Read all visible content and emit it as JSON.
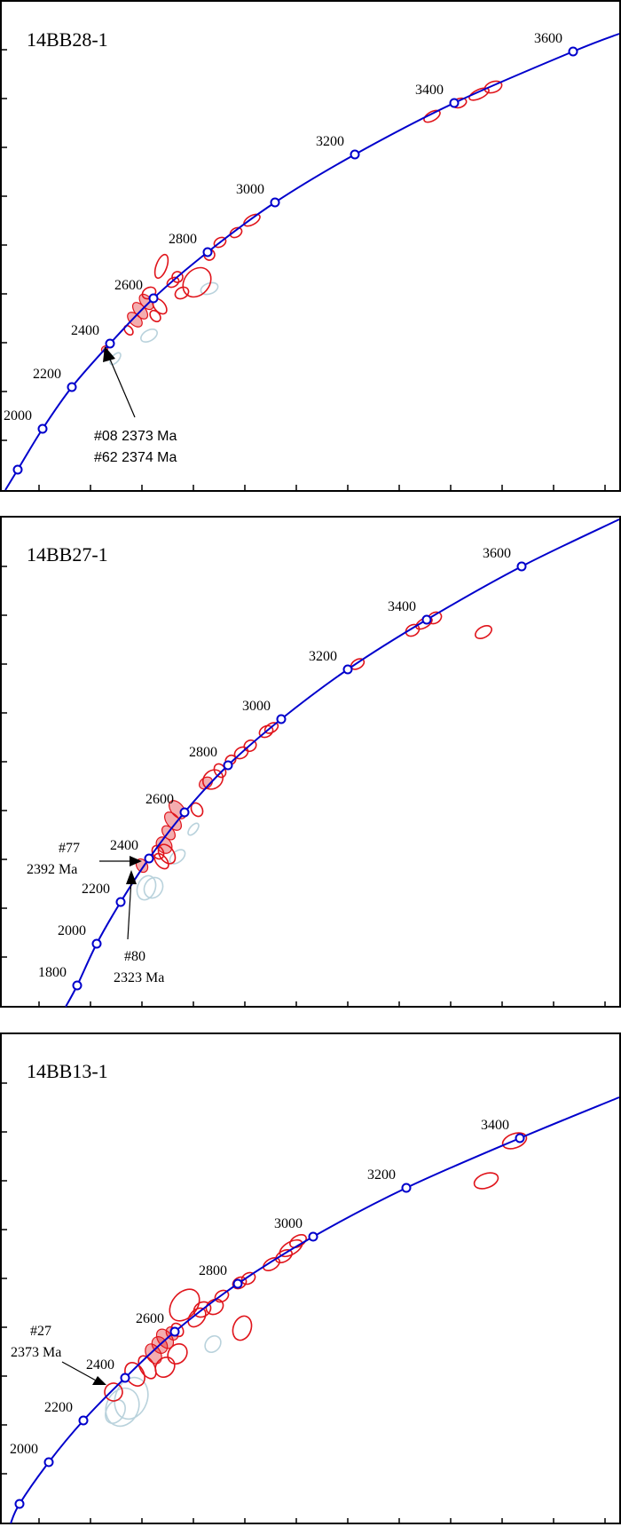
{
  "chart_data": [
    {
      "type": "scatter",
      "title": "14BB28-1",
      "concordia_age_markers": [
        2000,
        2200,
        2400,
        2600,
        2800,
        3000,
        3200,
        3400,
        3600
      ],
      "annotations": [
        {
          "lines": [
            "#08 2373 Ma",
            "#62 2374 Ma"
          ]
        }
      ],
      "colors": {
        "concordant": "#e0141b",
        "discordant": "#b9d2dc",
        "concordia": "#0000cc"
      }
    },
    {
      "type": "scatter",
      "title": "14BB27-1",
      "concordia_age_markers": [
        1800,
        2000,
        2200,
        2400,
        2600,
        2800,
        3000,
        3200,
        3400,
        3600
      ],
      "annotations": [
        {
          "lines": [
            "#77",
            "2392 Ma"
          ]
        },
        {
          "lines": [
            "#80",
            "2323 Ma"
          ]
        }
      ],
      "colors": {
        "concordant": "#e0141b",
        "discordant": "#b9d2dc",
        "concordia": "#0000cc"
      }
    },
    {
      "type": "scatter",
      "title": "14BB13-1",
      "concordia_age_markers": [
        2000,
        2200,
        2400,
        2600,
        2800,
        3000,
        3200,
        3400
      ],
      "annotations": [
        {
          "lines": [
            "#27",
            "2373 Ma"
          ]
        }
      ],
      "colors": {
        "concordant": "#e0141b",
        "discordant": "#b9d2dc",
        "concordia": "#0000cc"
      }
    }
  ]
}
